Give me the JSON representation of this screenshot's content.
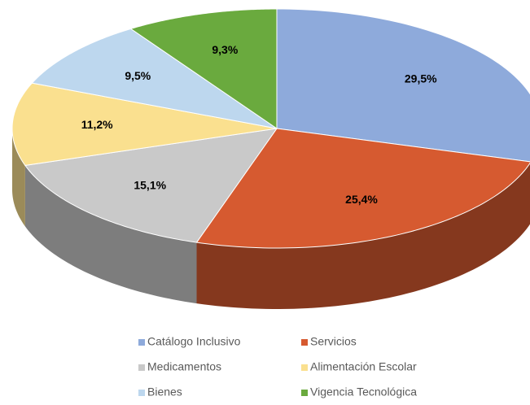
{
  "chart_data": {
    "type": "pie",
    "categories": [
      "Catálogo Inclusivo",
      "Servicios",
      "Medicamentos",
      "Alimentación Escolar",
      "Bienes",
      "Vigencia Tecnológica"
    ],
    "values": [
      29.5,
      25.4,
      15.1,
      11.2,
      9.5,
      9.3
    ],
    "value_labels": [
      "29,5%",
      "25,4%",
      "15,1%",
      "11,2%",
      "9,5%",
      "9,3%"
    ],
    "colors": [
      "#8eaadb",
      "#d65a30",
      "#c9c9c9",
      "#fae08f",
      "#bdd7ee",
      "#6aaa3e"
    ],
    "legend": "bottom"
  }
}
